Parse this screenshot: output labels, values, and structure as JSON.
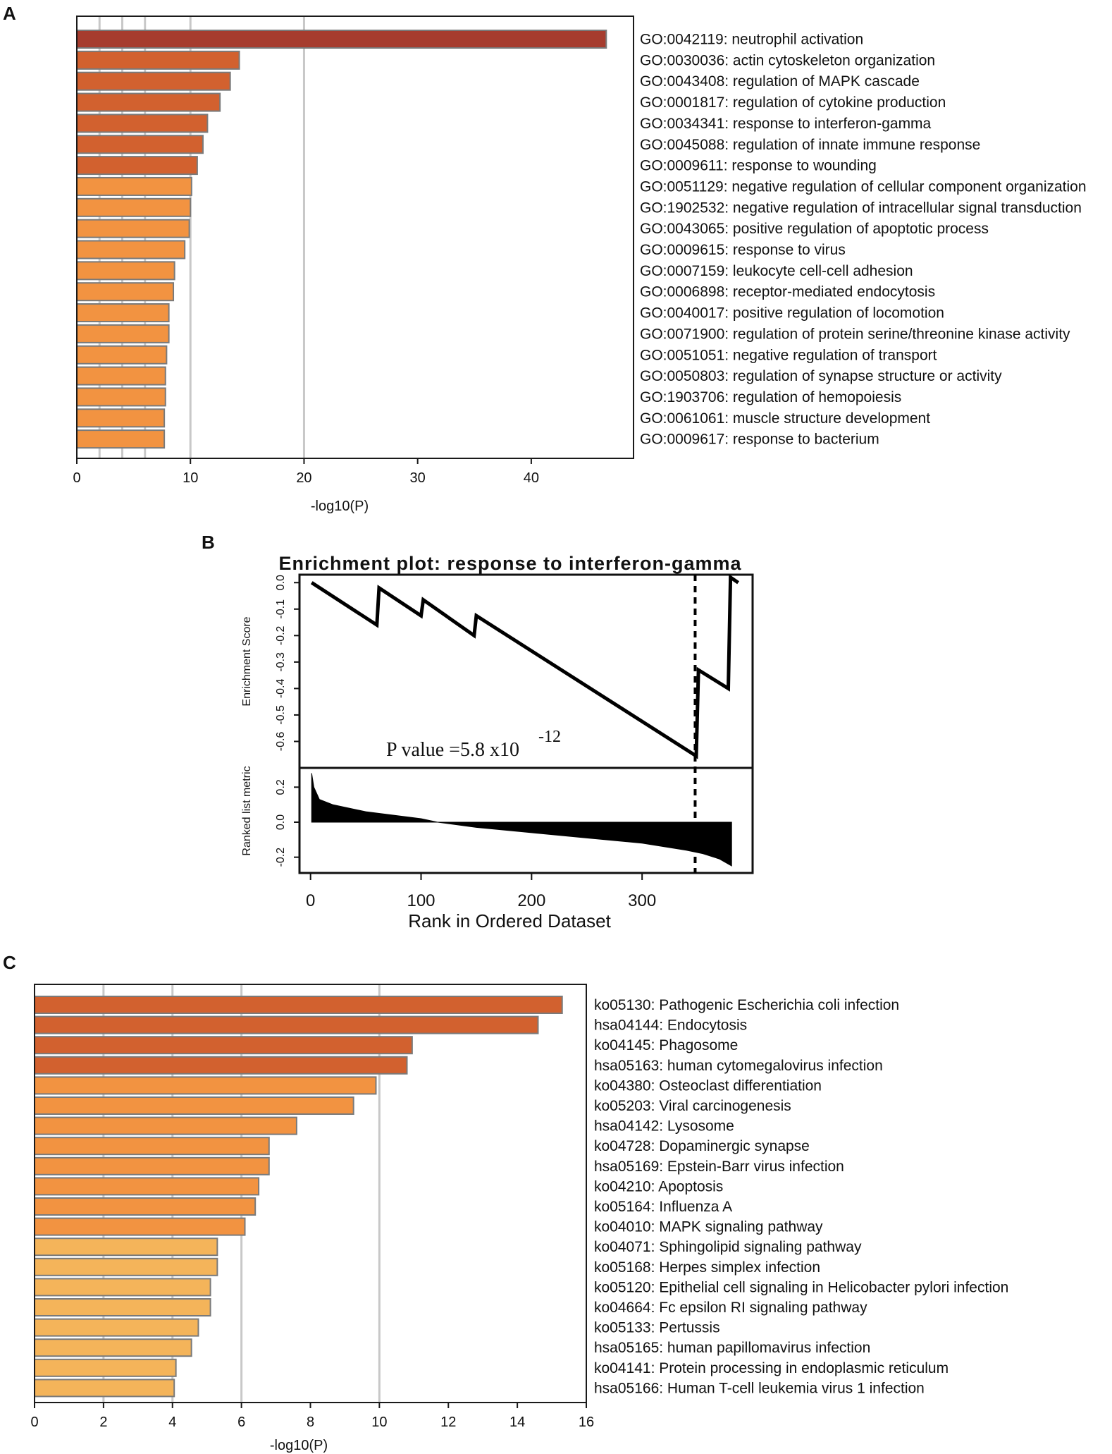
{
  "panel_labels": [
    "A",
    "B",
    "C"
  ],
  "chart_data": [
    {
      "panel": "A",
      "type": "bar",
      "orientation": "horizontal",
      "xlabel": "-log10(P)",
      "xlim": [
        0,
        49
      ],
      "xticks": [
        0,
        10,
        20,
        30,
        40
      ],
      "gridlines": [
        2,
        4,
        6,
        10,
        20
      ],
      "colors": {
        "dark": "#a63c2e",
        "mid": "#d2612f",
        "light": "#f29341",
        "border": "#7a7a7a",
        "grid": "#c8c8c8"
      },
      "categories": [
        "GO:0042119: neutrophil activation",
        "GO:0030036: actin cytoskeleton organization",
        "GO:0043408: regulation of MAPK cascade",
        "GO:0001817: regulation of cytokine production",
        "GO:0034341: response to interferon-gamma",
        "GO:0045088: regulation of innate immune response",
        "GO:0009611: response to wounding",
        "GO:0051129: negative regulation of cellular component organization",
        "GO:1902532: negative regulation of intracellular signal transduction",
        "GO:0043065: positive regulation of apoptotic process",
        "GO:0009615: response to virus",
        "GO:0007159: leukocyte cell-cell adhesion",
        "GO:0006898: receptor-mediated endocytosis",
        "GO:0040017: positive regulation of locomotion",
        "GO:0071900: regulation of protein serine/threonine kinase activity",
        "GO:0051051: negative regulation of transport",
        "GO:0050803: regulation of synapse structure or activity",
        "GO:1903706: regulation of hemopoiesis",
        "GO:0061061: muscle structure development",
        "GO:0009617: response to bacterium"
      ],
      "values": [
        46.6,
        14.3,
        13.5,
        12.6,
        11.5,
        11.1,
        10.6,
        10.1,
        10.0,
        9.9,
        9.5,
        8.6,
        8.5,
        8.1,
        8.1,
        7.9,
        7.8,
        7.8,
        7.7,
        7.7
      ],
      "color_class": [
        "dark",
        "mid",
        "mid",
        "mid",
        "mid",
        "mid",
        "mid",
        "light",
        "light",
        "light",
        "light",
        "light",
        "light",
        "light",
        "light",
        "light",
        "light",
        "light",
        "light",
        "light"
      ]
    },
    {
      "panel": "B",
      "type": "line",
      "title": "Enrichment plot:  response  to  interferon-gamma",
      "xlabel": "Rank in Ordered Dataset",
      "xticks": [
        0,
        100,
        200,
        300
      ],
      "xlim": [
        -10,
        400
      ],
      "es_ylabel": "Enrichment Score",
      "es_yticks": [
        "0.0",
        "-0.1",
        "-0.2",
        "-0.3",
        "-0.4",
        "-0.5",
        "-0.6"
      ],
      "es_ylim": [
        -0.7,
        0.03
      ],
      "metric_ylabel": "Ranked list metric",
      "metric_yticks": [
        "0.2",
        "0.0",
        "-0.2"
      ],
      "metric_ylim": [
        -0.29,
        0.31
      ],
      "p_value_text": "P value =5.8 x10",
      "p_value_exponent": "-12",
      "leading_edge_rank": 348,
      "n_genes": 381,
      "es_curve": {
        "x": [
          1,
          60,
          62,
          100,
          102,
          148,
          150,
          349,
          351,
          378,
          380,
          387
        ],
        "y": [
          0.0,
          -0.16,
          -0.02,
          -0.125,
          -0.065,
          -0.2,
          -0.125,
          -0.655,
          -0.33,
          -0.4,
          0.02,
          0.0
        ]
      },
      "ranked_metric_profile": {
        "x": [
          1,
          3,
          8,
          20,
          50,
          100,
          115,
          150,
          200,
          250,
          300,
          340,
          355,
          370,
          381
        ],
        "y": [
          0.28,
          0.2,
          0.13,
          0.1,
          0.06,
          0.02,
          0.0,
          -0.03,
          -0.06,
          -0.09,
          -0.12,
          -0.16,
          -0.18,
          -0.21,
          -0.25
        ]
      }
    },
    {
      "panel": "C",
      "type": "bar",
      "orientation": "horizontal",
      "xlabel": "-log10(P)",
      "xlim": [
        0,
        16
      ],
      "xticks": [
        0,
        2,
        4,
        6,
        8,
        10,
        12,
        14,
        16
      ],
      "gridlines": [
        2,
        4,
        6,
        10
      ],
      "colors": {
        "mid": "#d2612f",
        "light": "#f29341",
        "pale": "#f4b45a",
        "border": "#7a7a7a",
        "grid": "#c8c8c8"
      },
      "categories": [
        "ko05130: Pathogenic Escherichia coli infection",
        "hsa04144: Endocytosis",
        "ko04145: Phagosome",
        "hsa05163: human cytomegalovirus infection",
        "ko04380: Osteoclast differentiation",
        "ko05203: Viral carcinogenesis",
        "hsa04142: Lysosome",
        "ko04728: Dopaminergic synapse",
        "hsa05169: Epstein-Barr virus infection",
        "ko04210: Apoptosis",
        "ko05164: Influenza A",
        "ko04010: MAPK signaling pathway",
        "ko04071: Sphingolipid signaling pathway",
        "ko05168: Herpes simplex infection",
        "ko05120: Epithelial cell signaling in Helicobacter pylori infection",
        "ko04664: Fc epsilon RI signaling pathway",
        "ko05133: Pertussis",
        "hsa05165: human papillomavirus infection",
        "ko04141: Protein processing in endoplasmic reticulum",
        "hsa05166: Human T-cell leukemia virus 1 infection"
      ],
      "values": [
        15.3,
        14.6,
        10.95,
        10.8,
        9.9,
        9.25,
        7.6,
        6.8,
        6.8,
        6.5,
        6.4,
        6.1,
        5.3,
        5.3,
        5.1,
        5.1,
        4.75,
        4.55,
        4.1,
        4.05
      ],
      "color_class": [
        "mid",
        "mid",
        "mid",
        "mid",
        "light",
        "light",
        "light",
        "light",
        "light",
        "light",
        "light",
        "light",
        "pale",
        "pale",
        "pale",
        "pale",
        "pale",
        "pale",
        "pale",
        "pale"
      ]
    }
  ]
}
